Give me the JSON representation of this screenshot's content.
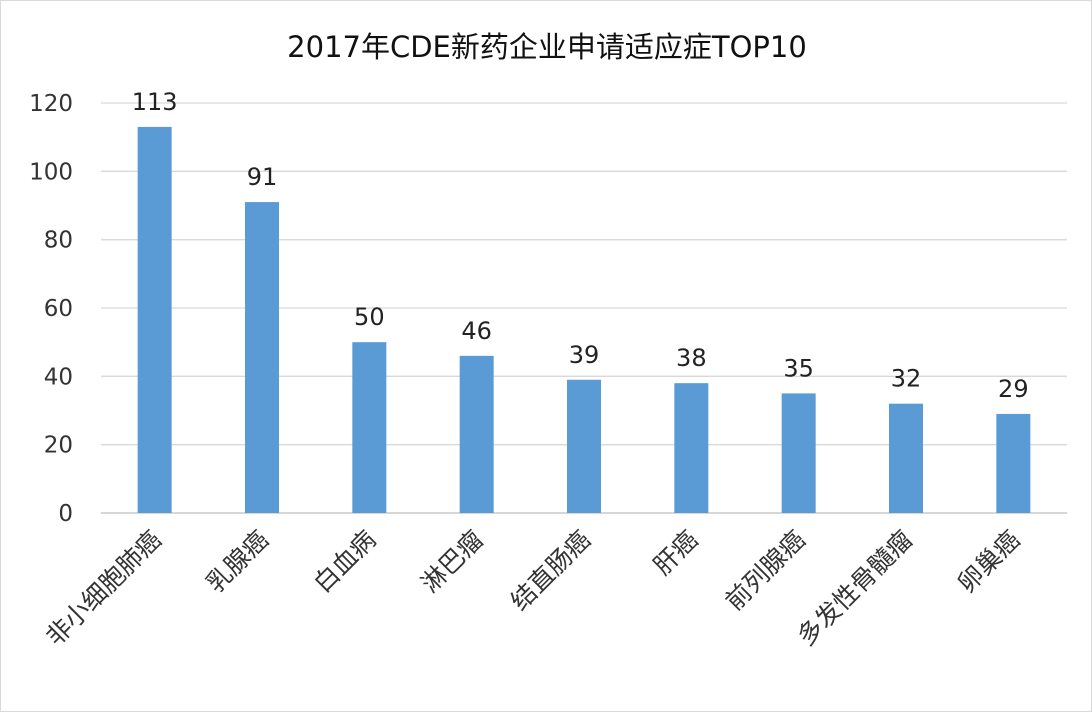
{
  "chart_data": {
    "type": "bar",
    "title": "2017年CDE新药企业申请适应症TOP10",
    "xlabel": "",
    "ylabel": "",
    "categories": [
      "非小细胞肺癌",
      "乳腺癌",
      "白血病",
      "淋巴瘤",
      "结直肠癌",
      "肝癌",
      "前列腺癌",
      "多发性骨髓瘤",
      "卵巢癌"
    ],
    "values": [
      113,
      91,
      50,
      46,
      39,
      38,
      35,
      32,
      29
    ],
    "ylim": [
      0,
      120
    ],
    "yticks": [
      0,
      20,
      40,
      60,
      80,
      100,
      120
    ],
    "grid": true,
    "legend": "none",
    "bar_color": "#5B9BD5"
  }
}
